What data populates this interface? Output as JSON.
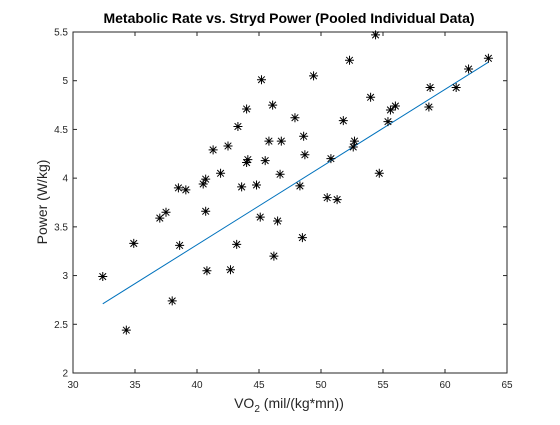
{
  "chart_data": {
    "type": "scatter",
    "title": "Metabolic Rate vs. Stryd Power (Pooled Individual Data)",
    "xlabel_main": "VO",
    "xlabel_sub": "2",
    "xlabel_tail": " (mil/(kg*mn))",
    "ylabel": "Power (W/kg)",
    "xlim": [
      30,
      65
    ],
    "ylim": [
      2,
      5.5
    ],
    "xticks": [
      30,
      35,
      40,
      45,
      50,
      55,
      60,
      65
    ],
    "yticks": [
      2,
      2.5,
      3,
      3.5,
      4,
      4.5,
      5,
      5.5
    ],
    "xtick_labels": [
      "30",
      "35",
      "40",
      "45",
      "50",
      "55",
      "60",
      "65"
    ],
    "ytick_labels": [
      "2",
      "2.5",
      "3",
      "3.5",
      "4",
      "4.5",
      "5",
      "5.5"
    ],
    "grid": false,
    "marker": "asterisk",
    "colors": {
      "points": "#000000",
      "fit_line": "#0072BD",
      "axes": "#262626"
    },
    "points": [
      [
        32.4,
        2.99
      ],
      [
        34.3,
        2.44
      ],
      [
        34.9,
        3.33
      ],
      [
        37.0,
        3.59
      ],
      [
        37.5,
        3.65
      ],
      [
        38.0,
        2.74
      ],
      [
        38.5,
        3.9
      ],
      [
        38.6,
        3.31
      ],
      [
        39.1,
        3.88
      ],
      [
        40.5,
        3.94
      ],
      [
        40.7,
        3.99
      ],
      [
        40.7,
        3.66
      ],
      [
        40.8,
        3.05
      ],
      [
        41.3,
        4.29
      ],
      [
        41.9,
        4.05
      ],
      [
        42.5,
        4.33
      ],
      [
        42.7,
        3.06
      ],
      [
        43.2,
        3.32
      ],
      [
        43.3,
        4.53
      ],
      [
        43.6,
        3.91
      ],
      [
        44.0,
        4.16
      ],
      [
        44.0,
        4.71
      ],
      [
        44.1,
        4.19
      ],
      [
        44.8,
        3.93
      ],
      [
        45.1,
        3.6
      ],
      [
        45.2,
        5.01
      ],
      [
        45.5,
        4.18
      ],
      [
        45.8,
        4.38
      ],
      [
        46.1,
        4.75
      ],
      [
        46.2,
        3.2
      ],
      [
        46.5,
        3.56
      ],
      [
        46.7,
        4.04
      ],
      [
        46.8,
        4.38
      ],
      [
        47.9,
        4.62
      ],
      [
        48.3,
        3.92
      ],
      [
        48.5,
        3.39
      ],
      [
        48.6,
        4.43
      ],
      [
        48.7,
        4.24
      ],
      [
        49.4,
        5.05
      ],
      [
        50.5,
        3.8
      ],
      [
        50.8,
        4.2
      ],
      [
        51.3,
        3.78
      ],
      [
        51.8,
        4.59
      ],
      [
        52.3,
        5.21
      ],
      [
        52.6,
        4.32
      ],
      [
        52.7,
        4.38
      ],
      [
        54.0,
        4.83
      ],
      [
        54.4,
        5.47
      ],
      [
        54.7,
        4.05
      ],
      [
        55.4,
        4.58
      ],
      [
        55.6,
        4.7
      ],
      [
        56.0,
        4.74
      ],
      [
        58.7,
        4.73
      ],
      [
        58.8,
        4.93
      ],
      [
        60.9,
        4.93
      ],
      [
        61.9,
        5.12
      ],
      [
        63.5,
        5.23
      ]
    ],
    "fit_line": {
      "x": [
        32.4,
        63.5
      ],
      "y": [
        2.71,
        5.19
      ]
    }
  }
}
